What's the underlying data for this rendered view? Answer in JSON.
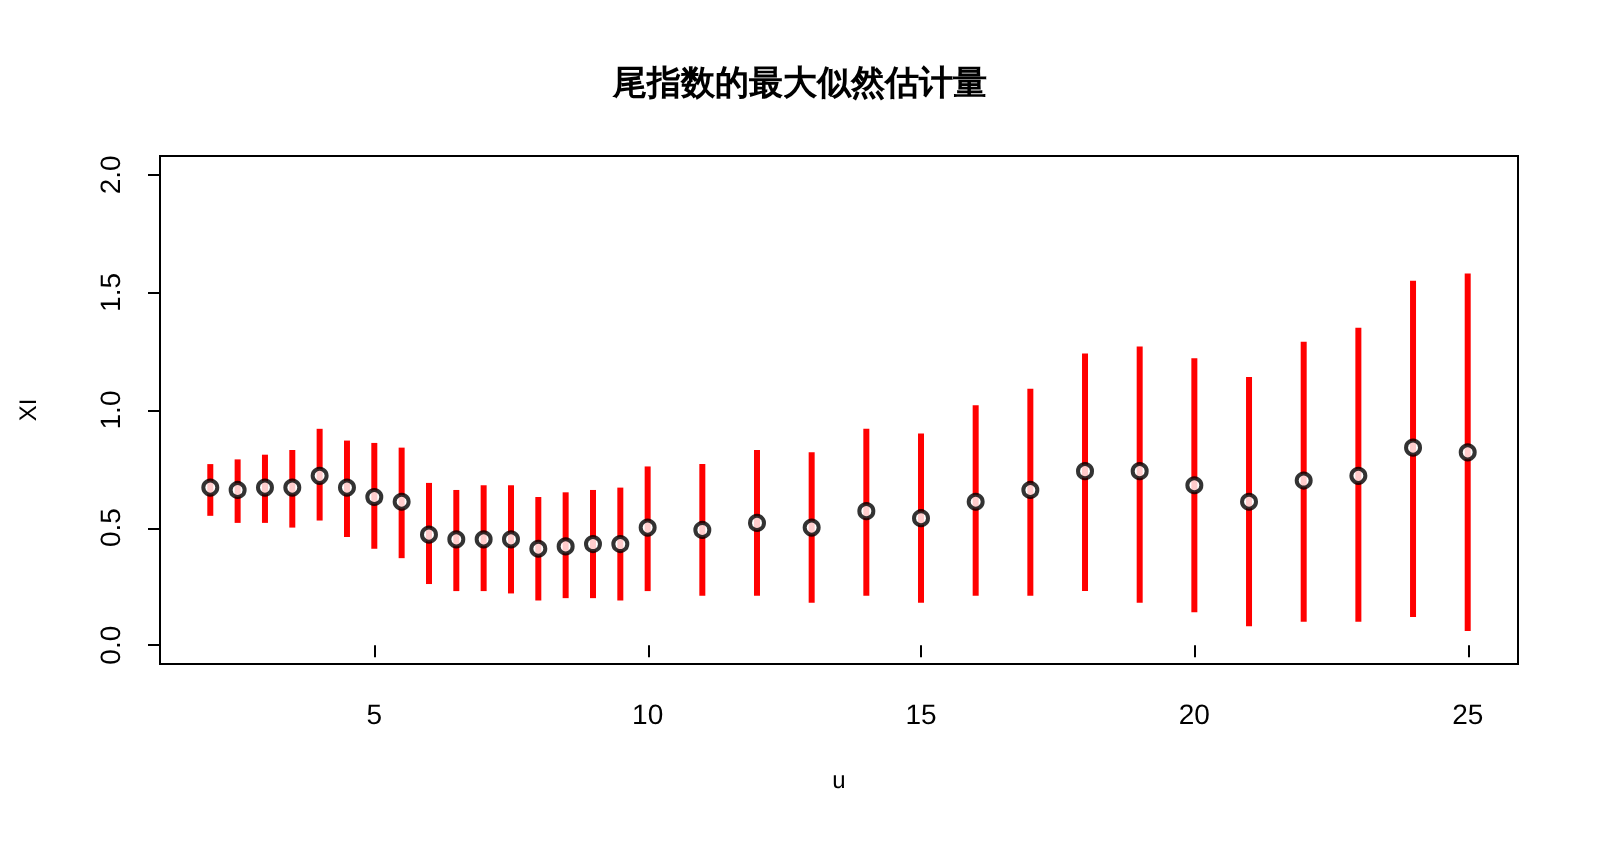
{
  "chart_data": {
    "type": "scatter",
    "title": "尾指数的最大似然估计量",
    "xlabel": "u",
    "ylabel": "XI",
    "x": [
      2,
      2.5,
      3,
      3.5,
      4,
      4.5,
      5,
      5.5,
      6,
      6.5,
      7,
      7.5,
      8,
      8.5,
      9,
      9.5,
      10,
      11,
      12,
      13,
      14,
      15,
      16,
      17,
      18,
      19,
      20,
      21,
      22,
      23,
      24,
      25
    ],
    "marker": "circle",
    "color": "#ff0000",
    "series": [
      {
        "color": "#000000",
        "values": [
          0.67,
          0.66,
          0.67,
          0.67,
          0.72,
          0.67,
          0.63,
          0.61,
          0.47,
          0.45,
          0.45,
          0.45,
          0.41,
          0.42,
          0.43,
          0.43,
          0.5,
          0.49,
          0.52,
          0.5,
          0.57,
          0.54,
          0.61,
          0.66,
          0.74,
          0.74,
          0.68,
          0.61,
          0.7,
          0.72,
          0.84,
          0.82
        ],
        "errors": [
          [
            0.55,
            0.77
          ],
          [
            0.52,
            0.79
          ],
          [
            0.52,
            0.81
          ],
          [
            0.5,
            0.83
          ],
          [
            0.53,
            0.92
          ],
          [
            0.46,
            0.87
          ],
          [
            0.41,
            0.86
          ],
          [
            0.37,
            0.84
          ],
          [
            0.26,
            0.69
          ],
          [
            0.23,
            0.66
          ],
          [
            0.23,
            0.68
          ],
          [
            0.22,
            0.68
          ],
          [
            0.19,
            0.63
          ],
          [
            0.2,
            0.65
          ],
          [
            0.2,
            0.66
          ],
          [
            0.19,
            0.67
          ],
          [
            0.23,
            0.76
          ],
          [
            0.21,
            0.77
          ],
          [
            0.21,
            0.83
          ],
          [
            0.18,
            0.82
          ],
          [
            0.21,
            0.92
          ],
          [
            0.18,
            0.9
          ],
          [
            0.21,
            1.02
          ],
          [
            0.21,
            1.09
          ],
          [
            0.23,
            1.24
          ],
          [
            0.18,
            1.27
          ],
          [
            0.14,
            1.22
          ],
          [
            0.08,
            1.14
          ],
          [
            0.1,
            1.29
          ],
          [
            0.1,
            1.35
          ],
          [
            0.12,
            1.55
          ],
          [
            0.06,
            1.58
          ]
        ]
      }
    ],
    "xlim": [
      1.08,
      25.92
    ],
    "xticks": [
      5,
      10,
      15,
      20,
      25
    ],
    "ylim": [
      -0.08,
      2.08
    ],
    "yticks": [
      {
        "value": 0,
        "label": "0.0"
      },
      {
        "value": 0.5,
        "label": "0.5"
      },
      {
        "value": 1,
        "label": "1.0"
      },
      {
        "value": 1.5,
        "label": "1.5"
      },
      {
        "value": 2,
        "label": "2.0"
      }
    ],
    "grid": false
  }
}
